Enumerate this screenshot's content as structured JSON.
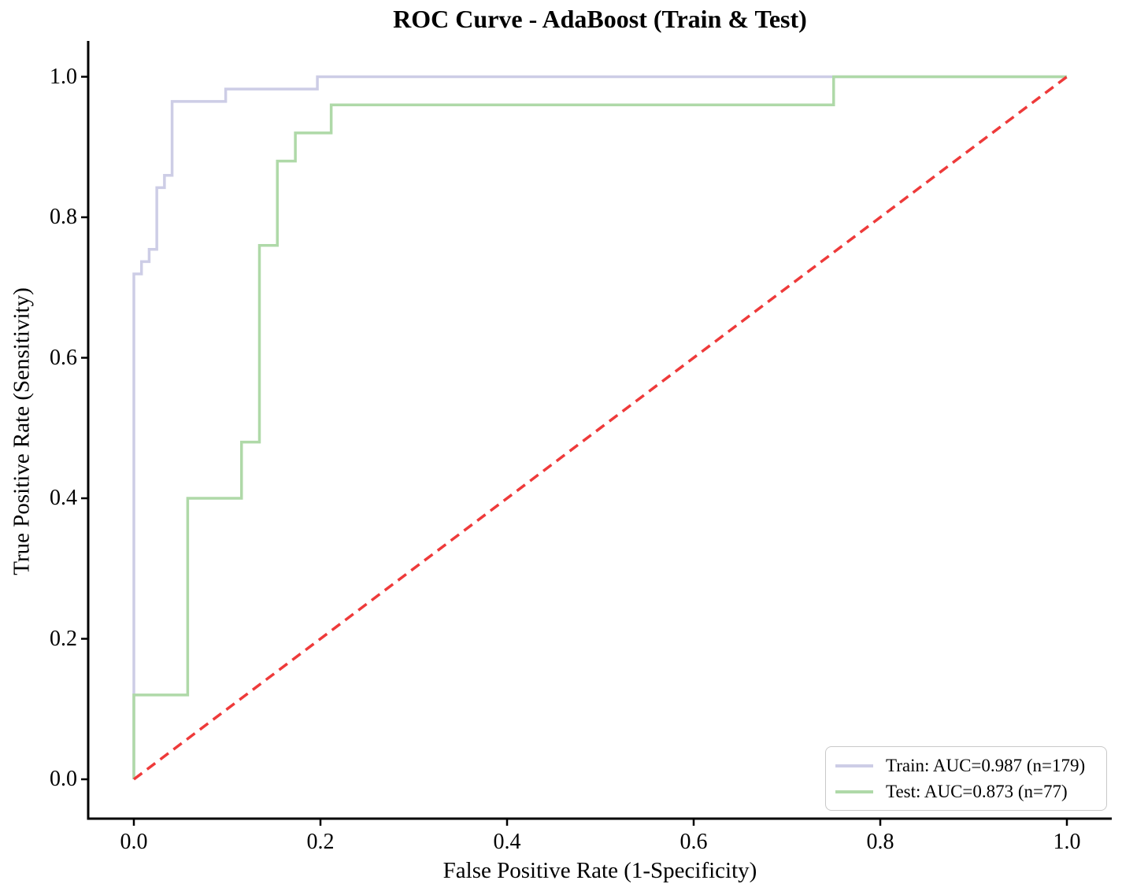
{
  "title": "ROC Curve - AdaBoost (Train & Test)",
  "axes": {
    "xlabel": "False Positive Rate (1-Specificity)",
    "ylabel": "True Positive Rate (Sensitivity)",
    "x_tick_labels": [
      "0.0",
      "0.2",
      "0.4",
      "0.6",
      "0.8",
      "1.0"
    ],
    "x_tick_values": [
      0.0,
      0.2,
      0.4,
      0.6,
      0.8,
      1.0
    ],
    "y_tick_labels": [
      "0.0",
      "0.2",
      "0.4",
      "0.6",
      "0.8",
      "1.0"
    ],
    "y_tick_values": [
      0.0,
      0.2,
      0.4,
      0.6,
      0.8,
      1.0
    ],
    "spine_color": "#000000"
  },
  "legend": {
    "entries": [
      {
        "label": "Train: AUC=0.987 (n=179)",
        "color": "#cdcde6"
      },
      {
        "label": "Test: AUC=0.873 (n=77)",
        "color": "#afd9a8"
      }
    ]
  },
  "chart_data": {
    "type": "line",
    "subtype": "roc-step-curves",
    "title": "ROC Curve - AdaBoost (Train & Test)",
    "xlabel": "False Positive Rate (1-Specificity)",
    "ylabel": "True Positive Rate (Sensitivity)",
    "xlim": [
      0,
      1
    ],
    "ylim": [
      0,
      1
    ],
    "grid": false,
    "legend_position": "lower right",
    "series": [
      {
        "name": "Train",
        "auc": 0.987,
        "n": 179,
        "color": "#cdcde6",
        "style": "solid",
        "width": 3.5,
        "fpr": [
          0,
          0,
          0.0082,
          0.0082,
          0.0164,
          0.0164,
          0.0246,
          0.0246,
          0.0328,
          0.0328,
          0.041,
          0.041,
          0.0984,
          0.0984,
          0.1967,
          0.1967,
          1.0
        ],
        "tpr": [
          0,
          0.7193,
          0.7193,
          0.7368,
          0.7368,
          0.7544,
          0.7544,
          0.8421,
          0.8421,
          0.8596,
          0.8596,
          0.9649,
          0.9649,
          0.9825,
          0.9825,
          1.0,
          1.0
        ]
      },
      {
        "name": "Test",
        "auc": 0.873,
        "n": 77,
        "color": "#afd9a8",
        "style": "solid",
        "width": 3.5,
        "fpr": [
          0,
          0,
          0.0577,
          0.0577,
          0.1154,
          0.1154,
          0.1346,
          0.1346,
          0.1538,
          0.1538,
          0.1731,
          0.1731,
          0.2115,
          0.2115,
          0.75,
          0.75,
          1.0
        ],
        "tpr": [
          0,
          0.12,
          0.12,
          0.4,
          0.4,
          0.48,
          0.48,
          0.76,
          0.76,
          0.88,
          0.88,
          0.92,
          0.92,
          0.96,
          0.96,
          1.0,
          1.0
        ]
      },
      {
        "name": "Chance",
        "color": "#ee3a3a",
        "style": "dashed",
        "width": 3.5,
        "fpr": [
          0,
          1
        ],
        "tpr": [
          0,
          1
        ]
      }
    ]
  }
}
